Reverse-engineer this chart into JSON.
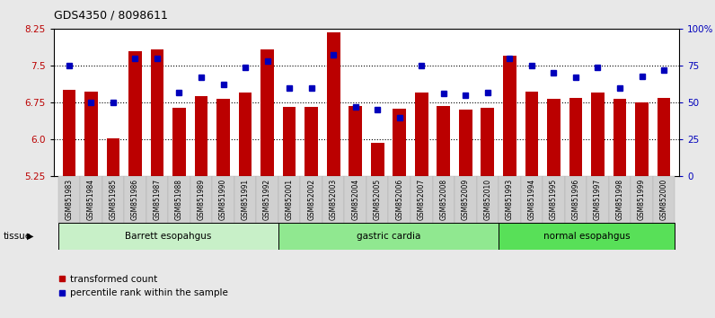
{
  "title": "GDS4350 / 8098611",
  "samples": [
    "GSM851983",
    "GSM851984",
    "GSM851985",
    "GSM851986",
    "GSM851987",
    "GSM851988",
    "GSM851989",
    "GSM851990",
    "GSM851991",
    "GSM851992",
    "GSM852001",
    "GSM852002",
    "GSM852003",
    "GSM852004",
    "GSM852005",
    "GSM852006",
    "GSM852007",
    "GSM852008",
    "GSM852009",
    "GSM852010",
    "GSM851993",
    "GSM851994",
    "GSM851995",
    "GSM851996",
    "GSM851997",
    "GSM851998",
    "GSM851999",
    "GSM852000"
  ],
  "red_bars": [
    7.0,
    6.98,
    6.03,
    7.8,
    7.83,
    6.65,
    6.88,
    6.82,
    6.96,
    7.82,
    6.66,
    6.67,
    8.18,
    6.68,
    5.93,
    6.62,
    6.96,
    6.68,
    6.61,
    6.65,
    7.7,
    6.98,
    6.83,
    6.85,
    6.95,
    6.83,
    6.76,
    6.85
  ],
  "blue_squares": [
    75,
    50,
    50,
    80,
    80,
    57,
    67,
    62,
    74,
    78,
    60,
    60,
    82,
    47,
    45,
    40,
    75,
    56,
    55,
    57,
    80,
    75,
    70,
    67,
    74,
    60,
    68,
    72
  ],
  "groups": [
    {
      "label": "Barrett esopahgus",
      "start": 0,
      "end": 10,
      "color": "#c8f0c8"
    },
    {
      "label": "gastric cardia",
      "start": 10,
      "end": 20,
      "color": "#90e890"
    },
    {
      "label": "normal esopahgus",
      "start": 20,
      "end": 28,
      "color": "#58e058"
    }
  ],
  "ylim_left": [
    5.25,
    8.25
  ],
  "ylim_right": [
    0,
    100
  ],
  "yticks_left": [
    5.25,
    6.0,
    6.75,
    7.5,
    8.25
  ],
  "yticks_right": [
    0,
    25,
    50,
    75,
    100
  ],
  "ytick_labels_right": [
    "0",
    "25",
    "50",
    "75",
    "100%"
  ],
  "hlines": [
    6.0,
    6.75,
    7.5
  ],
  "bar_color": "#bb0000",
  "square_color": "#0000bb",
  "bg_color": "#e8e8e8",
  "plot_bg": "#ffffff",
  "label_bg": "#d0d0d0"
}
